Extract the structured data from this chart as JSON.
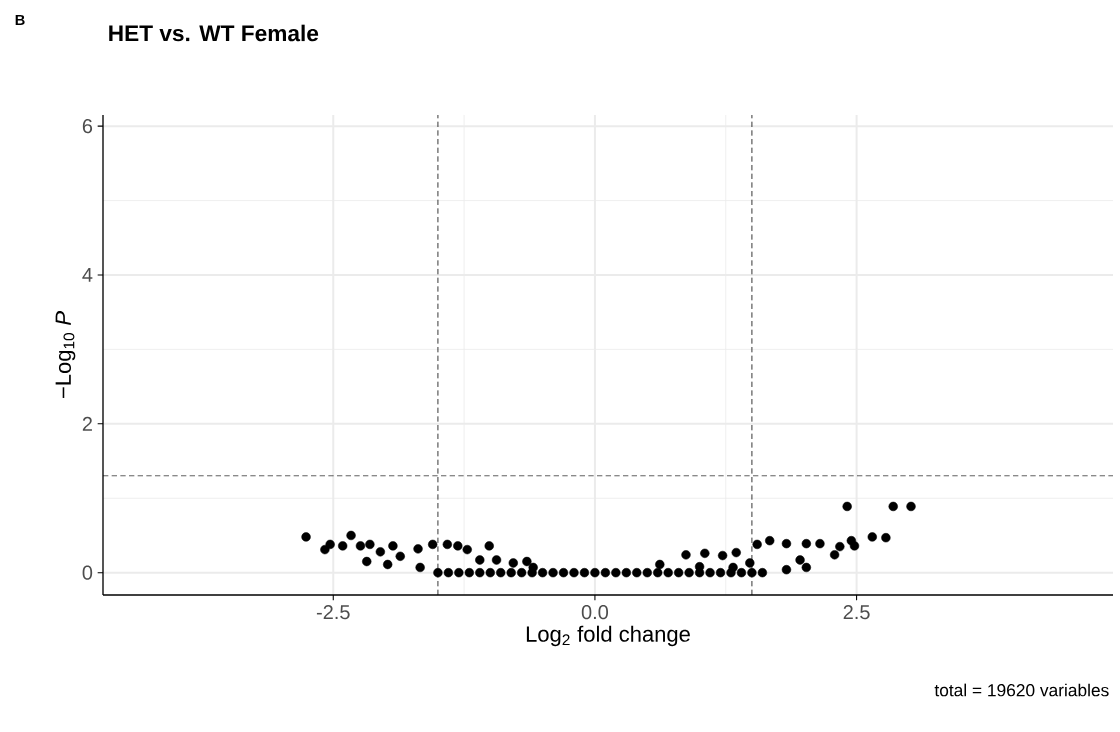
{
  "chart_data": {
    "type": "scatter",
    "title": "HET vs. WT Female",
    "xlabel": "Log$_{2}$ fold change",
    "ylabel": "−Log$_{10}$ *P*",
    "annotations": [
      "B",
      "total = 19620 variables"
    ],
    "x": [
      -2.76,
      -2.58,
      -2.53,
      -2.41,
      -2.33,
      -2.24,
      -2.15,
      -2.18,
      -2.05,
      -1.93,
      -1.98,
      -1.86,
      -1.69,
      -1.55,
      -1.41,
      -1.31,
      -1.22,
      -1.01,
      -1.67,
      -1.1,
      -0.94,
      -0.78,
      -0.65,
      -0.59,
      -1.5,
      -1.4,
      -1.3,
      -1.2,
      -1.1,
      -1.0,
      -0.9,
      -0.8,
      -0.7,
      -0.6,
      -0.5,
      -0.4,
      -0.3,
      -0.2,
      -0.1,
      0.0,
      0.1,
      0.2,
      0.3,
      0.4,
      0.5,
      0.6,
      0.7,
      0.8,
      0.9,
      1.0,
      1.1,
      1.2,
      1.3,
      1.4,
      1.5,
      1.6,
      0.62,
      0.87,
      1.05,
      1.22,
      1.35,
      1.55,
      1.67,
      1.83,
      2.02,
      2.15,
      2.29,
      2.34,
      2.45,
      2.48,
      2.41,
      2.65,
      2.78,
      2.85,
      3.02,
      2.02,
      1.96,
      1.83,
      1.48,
      1.32,
      1.0
    ],
    "values": [
      0.48,
      0.31,
      0.38,
      0.36,
      0.5,
      0.36,
      0.38,
      0.15,
      0.28,
      0.36,
      0.11,
      0.22,
      0.32,
      0.38,
      0.38,
      0.36,
      0.31,
      0.36,
      0.07,
      0.17,
      0.17,
      0.13,
      0.15,
      0.07,
      0.0,
      0.0,
      0.0,
      0.0,
      0.0,
      0.0,
      0.0,
      0.0,
      0.0,
      0.0,
      0.0,
      0.0,
      0.0,
      0.0,
      0.0,
      0.0,
      0.0,
      0.0,
      0.0,
      0.0,
      0.0,
      0.0,
      0.0,
      0.0,
      0.0,
      0.0,
      0.0,
      0.0,
      0.0,
      0.0,
      0.0,
      0.0,
      0.11,
      0.24,
      0.26,
      0.23,
      0.27,
      0.38,
      0.43,
      0.39,
      0.39,
      0.39,
      0.24,
      0.35,
      0.43,
      0.36,
      0.89,
      0.48,
      0.47,
      0.89,
      0.89,
      0.07,
      0.17,
      0.04,
      0.13,
      0.07,
      0.08
    ],
    "color": "#000000",
    "xlim": [
      -4.7,
      4.95
    ],
    "ylim": [
      -0.3,
      6.15
    ],
    "xticks": [
      {
        "value": -2.5,
        "label": "-2.5"
      },
      {
        "value": 0,
        "label": "0.0"
      },
      {
        "value": 2.5,
        "label": "2.5"
      }
    ],
    "yticks": [
      0,
      2,
      4,
      6
    ],
    "grid": true,
    "ref_lines": [
      {
        "axis": "x",
        "value": -1.5,
        "line_style": "dashed"
      },
      {
        "axis": "x",
        "value": 1.5,
        "line_style": "dashed"
      },
      {
        "axis": "y",
        "value": 1.3,
        "line_style": "dashed"
      }
    ]
  }
}
